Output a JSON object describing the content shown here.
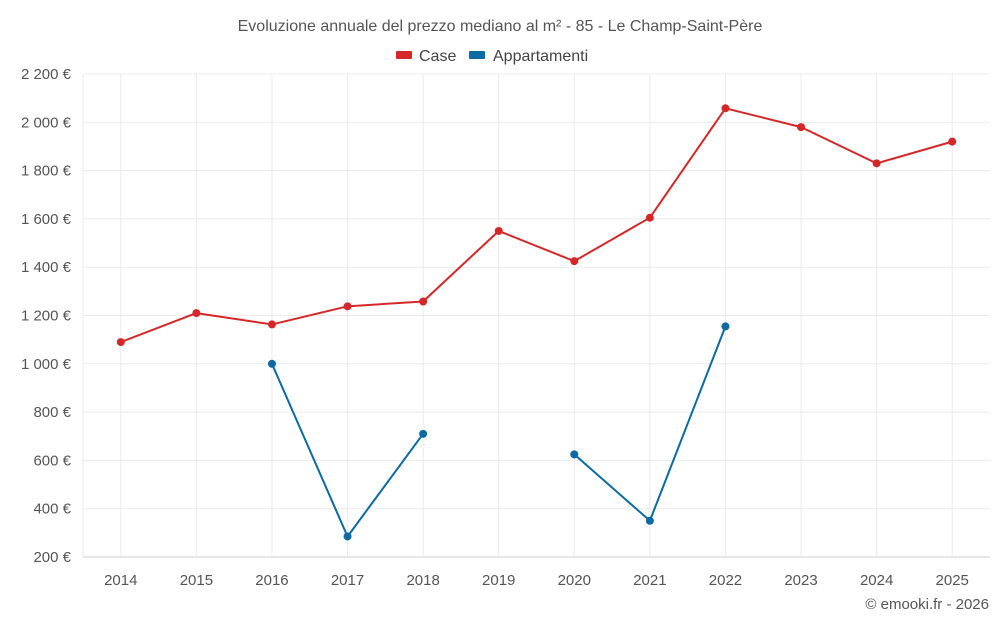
{
  "chart_data": {
    "type": "line",
    "title": "Evoluzione annuale del prezzo mediano al m² - 85 - Le Champ-Saint-Père",
    "categories": [
      "2014",
      "2015",
      "2016",
      "2017",
      "2018",
      "2019",
      "2020",
      "2021",
      "2022",
      "2023",
      "2024",
      "2025"
    ],
    "series": [
      {
        "name": "Case",
        "color": "#d62728",
        "values": [
          1090,
          1210,
          1163,
          1238,
          1258,
          1550,
          1425,
          1605,
          2058,
          1980,
          1830,
          1920
        ]
      },
      {
        "name": "Appartamenti",
        "color": "#0b6aa2",
        "values": [
          null,
          null,
          1000,
          285,
          710,
          null,
          625,
          350,
          1155,
          null,
          null,
          null
        ]
      }
    ],
    "ylim": [
      200,
      2200
    ],
    "yticks": [
      200,
      400,
      600,
      800,
      1000,
      1200,
      1400,
      1600,
      1800,
      2000,
      2200
    ],
    "ytick_labels": [
      "200 €",
      "400 €",
      "600 €",
      "800 €",
      "1 000 €",
      "1 200 €",
      "1 400 €",
      "1 600 €",
      "1 800 €",
      "2 000 €",
      "2 200 €"
    ],
    "xlabel": "",
    "ylabel": "",
    "grid": true,
    "legend_position": "top-center"
  },
  "credit": "© emooki.fr - 2026",
  "colors": {
    "grid": "#ebebeb",
    "axis": "#cccccc"
  }
}
